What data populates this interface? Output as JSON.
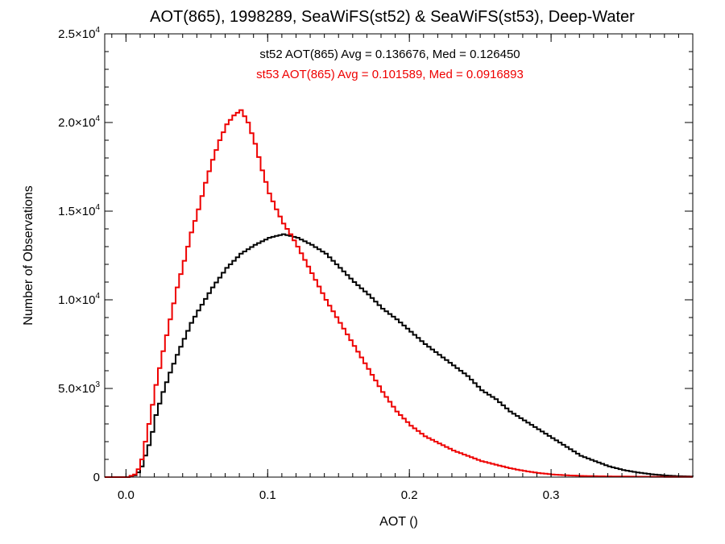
{
  "chart_data": {
    "type": "line",
    "title": "AOT(865), 1998289, SeaWiFS(st52) & SeaWiFS(st53), Deep-Water",
    "xlabel": "AOT ()",
    "ylabel": "Number of Observations",
    "xlim": [
      -0.015,
      0.4
    ],
    "ylim": [
      0,
      25000
    ],
    "grid": false,
    "step": true,
    "x_ticks": [
      {
        "value": 0.0,
        "label": "0.0"
      },
      {
        "value": 0.1,
        "label": "0.1"
      },
      {
        "value": 0.2,
        "label": "0.2"
      },
      {
        "value": 0.3,
        "label": "0.3"
      }
    ],
    "x_minor_step": 0.01,
    "y_ticks": [
      {
        "value": 0,
        "mant": "0",
        "exp": ""
      },
      {
        "value": 5000,
        "mant": "5.0×10",
        "exp": "3"
      },
      {
        "value": 10000,
        "mant": "1.0×10",
        "exp": "4"
      },
      {
        "value": 15000,
        "mant": "1.5×10",
        "exp": "4"
      },
      {
        "value": 20000,
        "mant": "2.0×10",
        "exp": "4"
      },
      {
        "value": 25000,
        "mant": "2.5×10",
        "exp": "4"
      }
    ],
    "y_minor_step": 1000,
    "annotations": [
      "st52 AOT(865) Avg = 0.136676, Med = 0.126450",
      "st53 AOT(865) Avg = 0.101589, Med = 0.0916893"
    ],
    "series": [
      {
        "name": "st52",
        "color": "#000000",
        "x": [
          -0.015,
          0.0,
          0.005,
          0.008,
          0.01,
          0.012,
          0.015,
          0.018,
          0.02,
          0.025,
          0.03,
          0.035,
          0.04,
          0.045,
          0.05,
          0.06,
          0.07,
          0.08,
          0.09,
          0.1,
          0.105,
          0.11,
          0.115,
          0.12,
          0.13,
          0.14,
          0.15,
          0.16,
          0.17,
          0.18,
          0.19,
          0.2,
          0.21,
          0.22,
          0.23,
          0.24,
          0.25,
          0.26,
          0.27,
          0.28,
          0.29,
          0.3,
          0.31,
          0.32,
          0.33,
          0.34,
          0.35,
          0.36,
          0.37,
          0.38,
          0.39,
          0.4
        ],
        "values": [
          0,
          0,
          100,
          300,
          600,
          1100,
          1800,
          2700,
          3500,
          4800,
          5900,
          6900,
          7800,
          8700,
          9400,
          10700,
          11800,
          12600,
          13100,
          13500,
          13600,
          13700,
          13600,
          13500,
          13100,
          12600,
          11800,
          11000,
          10300,
          9500,
          8900,
          8200,
          7500,
          6900,
          6300,
          5700,
          4900,
          4400,
          3700,
          3200,
          2700,
          2200,
          1700,
          1200,
          900,
          600,
          400,
          260,
          160,
          90,
          50,
          30
        ]
      },
      {
        "name": "st53",
        "color": "#ee0000",
        "x": [
          -0.015,
          0.0,
          0.005,
          0.008,
          0.01,
          0.012,
          0.015,
          0.018,
          0.02,
          0.025,
          0.03,
          0.035,
          0.04,
          0.045,
          0.05,
          0.055,
          0.06,
          0.065,
          0.07,
          0.075,
          0.08,
          0.085,
          0.09,
          0.095,
          0.1,
          0.105,
          0.11,
          0.115,
          0.12,
          0.13,
          0.14,
          0.15,
          0.16,
          0.17,
          0.18,
          0.19,
          0.2,
          0.21,
          0.22,
          0.23,
          0.24,
          0.25,
          0.26,
          0.27,
          0.28,
          0.29,
          0.3,
          0.31,
          0.32,
          0.33,
          0.34,
          0.36,
          0.38,
          0.4
        ],
        "values": [
          0,
          0,
          150,
          500,
          1000,
          1800,
          3000,
          4300,
          5200,
          7100,
          8900,
          10700,
          12200,
          13800,
          15100,
          16600,
          17900,
          19000,
          19900,
          20400,
          20700,
          20000,
          18800,
          17300,
          16000,
          15100,
          14300,
          13700,
          13000,
          11500,
          10000,
          8700,
          7400,
          6100,
          4800,
          3700,
          2900,
          2300,
          1900,
          1500,
          1200,
          900,
          700,
          500,
          350,
          230,
          150,
          100,
          70,
          50,
          40,
          25,
          15,
          10
        ]
      }
    ]
  }
}
